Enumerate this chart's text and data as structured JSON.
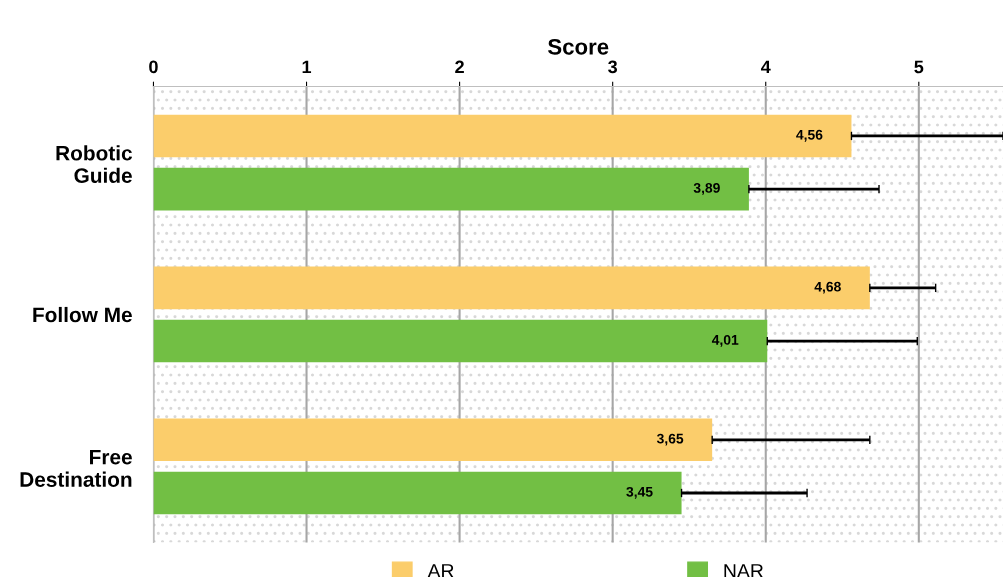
{
  "chart_data": {
    "type": "bar",
    "orientation": "horizontal",
    "xlabel": "Score",
    "categories": [
      "Robotic\nGuide",
      "Follow Me",
      "Free\nDestination"
    ],
    "series": [
      {
        "name": "AR",
        "color": "#fbcd6b",
        "values": [
          4.56,
          4.68,
          3.65
        ],
        "value_labels": [
          "4,56",
          "4,68",
          "3,65"
        ],
        "errors": [
          [
            4.56,
            5.55
          ],
          [
            4.68,
            5.11
          ],
          [
            3.65,
            4.68
          ]
        ]
      },
      {
        "name": "NAR",
        "color": "#72bf44",
        "values": [
          3.89,
          4.01,
          3.45
        ],
        "value_labels": [
          "3,89",
          "4,01",
          "3,45"
        ],
        "errors": [
          [
            3.89,
            4.74
          ],
          [
            4.01,
            4.99
          ],
          [
            3.45,
            4.27
          ]
        ]
      }
    ],
    "xlim": [
      0,
      5.55
    ],
    "xticks": [
      0,
      1,
      2,
      3,
      4,
      5
    ],
    "grid": "x",
    "legend": "bottom"
  }
}
